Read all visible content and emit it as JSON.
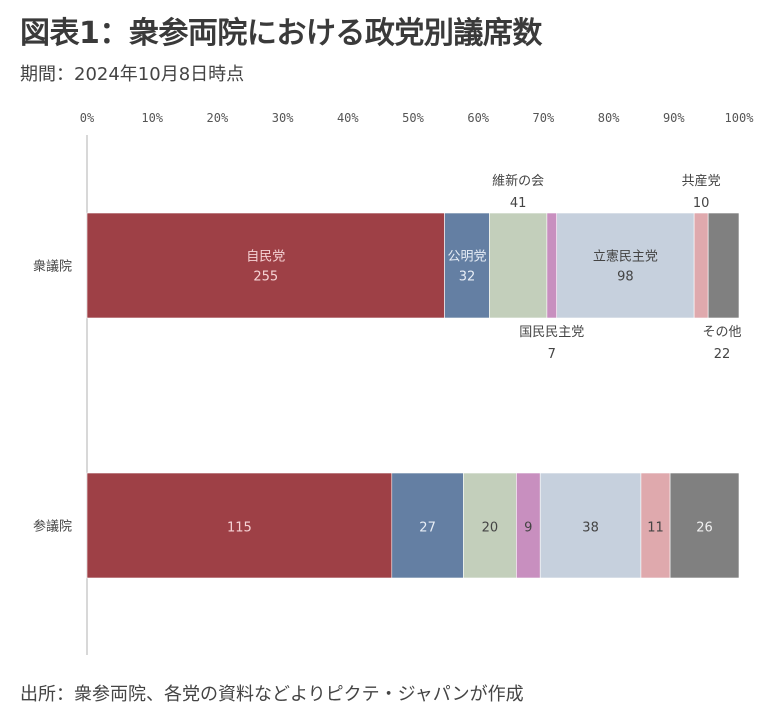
{
  "title": "図表1：衆参両院における政党別議席数",
  "subtitle": "期間：2024年10月8日時点",
  "source": "出所：衆参両院、各党の資料などよりピクテ・ジャパンが作成",
  "chart_data": {
    "type": "bar",
    "orientation": "horizontal",
    "stacked": "percent",
    "title": "衆参両院における政党別議席数",
    "xlabel": "",
    "ylabel": "",
    "xlim": [
      0,
      100
    ],
    "x_ticks": [
      "0%",
      "10%",
      "20%",
      "30%",
      "40%",
      "50%",
      "60%",
      "70%",
      "80%",
      "90%",
      "100%"
    ],
    "grid": false,
    "legend": "none",
    "categories": [
      "衆議院",
      "参議院"
    ],
    "series": [
      {
        "name": "自民党",
        "color": "#9e4046",
        "label_color": "#f6d3d5",
        "values": [
          255,
          115
        ]
      },
      {
        "name": "公明党",
        "color": "#647fa3",
        "label_color": "#e8eef6",
        "values": [
          32,
          27
        ]
      },
      {
        "name": "維新の会",
        "color": "#c3cfbb",
        "label_color": "#444444",
        "values": [
          41,
          20
        ]
      },
      {
        "name": "国民民主党",
        "color": "#c88fbf",
        "label_color": "#444444",
        "values": [
          7,
          9
        ]
      },
      {
        "name": "立憲民主党",
        "color": "#c6d0dd",
        "label_color": "#444444",
        "values": [
          98,
          38
        ]
      },
      {
        "name": "共産党",
        "color": "#dfa9ad",
        "label_color": "#444444",
        "values": [
          10,
          11
        ]
      },
      {
        "name": "その他",
        "color": "#808080",
        "label_color": "#f0f0f0",
        "values": [
          22,
          26
        ]
      }
    ],
    "annotations": [
      {
        "series": "自民党",
        "category": "衆議院",
        "text": "自民党",
        "value_text": "255",
        "placement": "inside"
      },
      {
        "series": "公明党",
        "category": "衆議院",
        "text": "公明党",
        "value_text": "32",
        "placement": "inside"
      },
      {
        "series": "維新の会",
        "category": "衆議院",
        "text": "維新の会",
        "value_text": "41",
        "placement": "above"
      },
      {
        "series": "国民民主党",
        "category": "衆議院",
        "text": "国民民主党",
        "value_text": "7",
        "placement": "below"
      },
      {
        "series": "立憲民主党",
        "category": "衆議院",
        "text": "立憲民主党",
        "value_text": "98",
        "placement": "inside"
      },
      {
        "series": "共産党",
        "category": "衆議院",
        "text": "共産党",
        "value_text": "10",
        "placement": "above"
      },
      {
        "series": "その他",
        "category": "衆議院",
        "text": "その他",
        "value_text": "22",
        "placement": "below"
      }
    ]
  }
}
